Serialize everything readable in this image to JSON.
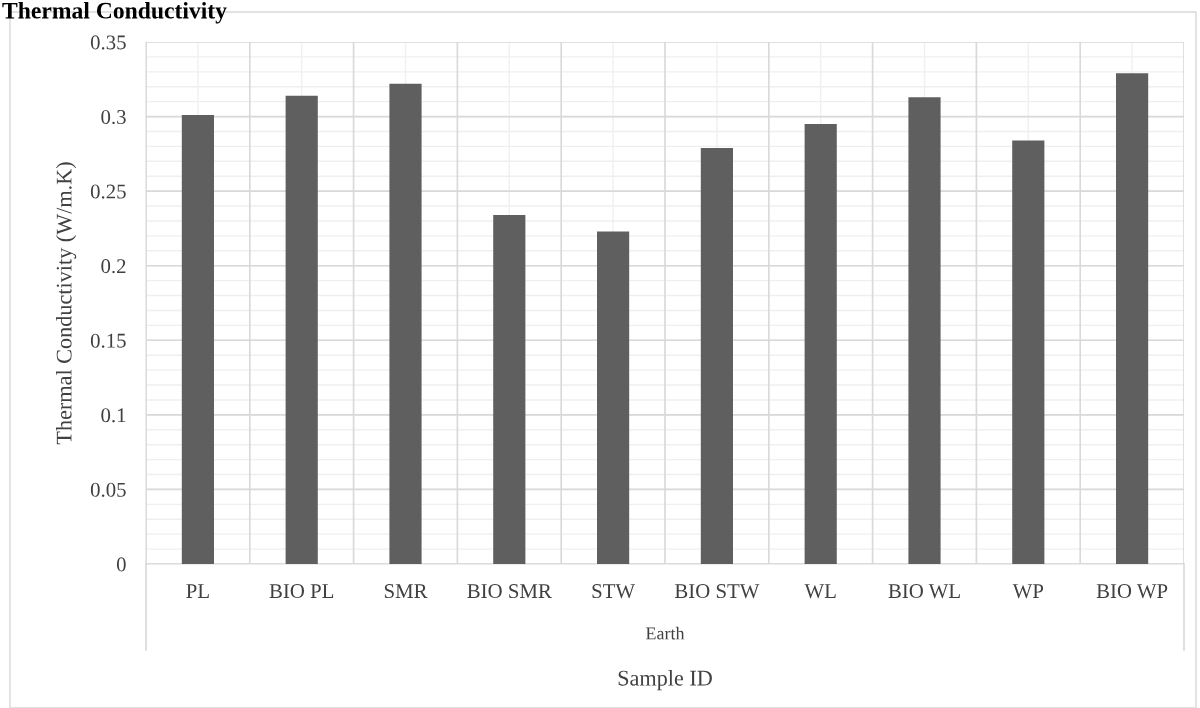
{
  "chart_data": {
    "type": "bar",
    "title": "Thermal Conductivity",
    "xlabel": "Sample ID",
    "ylabel": "Thermal Conductivity (W/m.K)",
    "annotations": [
      "Earth"
    ],
    "categories": [
      "PL",
      "BIO PL",
      "SMR",
      "BIO SMR",
      "STW",
      "BIO STW",
      "WL",
      "BIO WL",
      "WP",
      "BIO WP"
    ],
    "values": [
      0.301,
      0.314,
      0.322,
      0.234,
      0.223,
      0.279,
      0.295,
      0.313,
      0.284,
      0.329
    ],
    "color": "#5f5f5f",
    "ylim": [
      0,
      0.35
    ],
    "yticks": [
      0,
      0.05,
      0.1,
      0.15,
      0.2,
      0.25,
      0.3,
      0.35
    ],
    "grid": true,
    "legend": false
  }
}
